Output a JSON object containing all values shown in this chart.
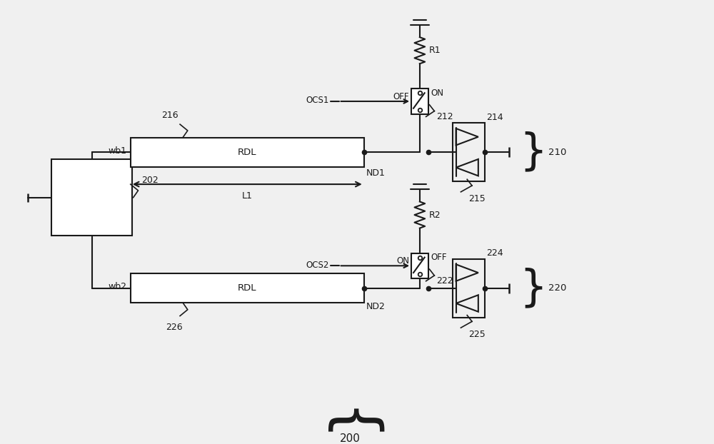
{
  "bg_color": "#f0f0f0",
  "line_color": "#1a1a1a",
  "fill_color": "#ffffff",
  "labels": {
    "wb1": "wb1",
    "wb2": "wb2",
    "RDL1": "RDL",
    "RDL2": "RDL",
    "L1": "L1",
    "R1": "R1",
    "R2": "R2",
    "OCS1": "OCS1",
    "OCS2": "OCS2",
    "OFF1": "OFF",
    "ON1": "ON",
    "ON2": "ON",
    "OFF2": "OFF",
    "ND1": "ND1",
    "ND2": "ND2",
    "n202": "202",
    "n210": "210",
    "n212": "212",
    "n214": "214",
    "n215": "215",
    "n216": "216",
    "n220": "220",
    "n222": "222",
    "n224": "224",
    "n225": "225",
    "n226": "226",
    "n200": "200"
  }
}
